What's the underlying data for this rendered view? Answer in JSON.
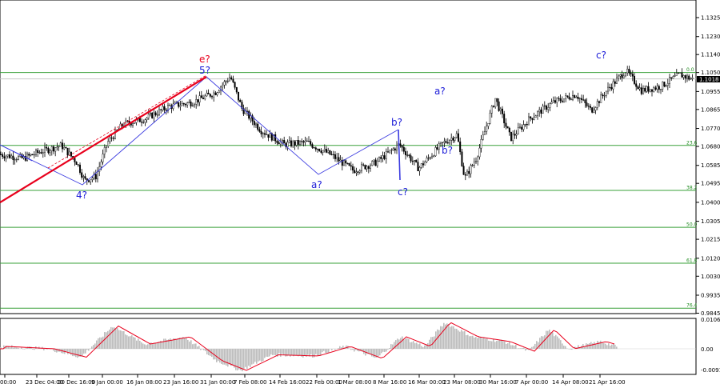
{
  "chart_data": [
    {
      "type": "candlestick",
      "instrument_price_label": "1.1018",
      "y_ticks": [
        "1.1325",
        "1.1230",
        "1.1140",
        "1.1050",
        "1.0955",
        "1.0865",
        "1.0770",
        "1.0680",
        "1.0585",
        "1.0495",
        "1.0400",
        "1.0305",
        "1.0215",
        "1.0120",
        "1.0030",
        "0.9935",
        "0.9845"
      ],
      "y_tick_values": [
        1.1325,
        1.123,
        1.114,
        1.105,
        1.0955,
        1.0865,
        1.077,
        1.068,
        1.0585,
        1.0495,
        1.04,
        1.0305,
        1.0215,
        1.012,
        1.003,
        0.9935,
        0.9845
      ],
      "ylim": [
        0.984,
        1.145
      ],
      "x_ticks": [
        "00:00",
        "23 Dec 04:00",
        "30 Dec 16:00",
        "9 Jan 00:00",
        "16 Jan 08:00",
        "23 Jan 16:00",
        "31 Jan 00:00",
        "7 Feb 08:00",
        "14 Feb 16:00",
        "22 Feb 00:00",
        "1 Mar 08:00",
        "8 Mar 16:00",
        "16 Mar 00:00",
        "23 Mar 08:00",
        "30 Mar 16:00",
        "7 Apr 00:00",
        "14 Apr 08:00",
        "21 Apr 16:00"
      ],
      "fib_levels": [
        {
          "label": "0.0",
          "price": 1.105
        },
        {
          "label": "23.6",
          "price": 1.0685
        },
        {
          "label": "38.2",
          "price": 1.046
        },
        {
          "label": "50.0",
          "price": 1.0275
        },
        {
          "label": "61.8",
          "price": 1.0095
        },
        {
          "label": "76.4",
          "price": 0.987
        }
      ],
      "wave_labels": [
        {
          "text": "e?",
          "color": "#e8001c"
        },
        {
          "text": "5?",
          "color": "#1c1cd8"
        },
        {
          "text": "4?",
          "color": "#1c1cd8"
        },
        {
          "text": "a?",
          "color": "#1c1cd8"
        },
        {
          "text": "b?",
          "color": "#1c1cd8"
        },
        {
          "text": "c?",
          "color": "#1c1cd8"
        },
        {
          "text": "a?",
          "color": "#1c1cd8"
        },
        {
          "text": "b?",
          "color": "#1c1cd8"
        },
        {
          "text": "c?",
          "color": "#1c1cd8"
        }
      ],
      "price_path": [
        [
          "0",
          1.064
        ],
        [
          "0.03",
          1.062
        ],
        [
          "0.05",
          1.065
        ],
        [
          "0.08",
          1.0685
        ],
        [
          "0.1",
          1.06
        ],
        [
          "0.11",
          1.051
        ],
        [
          "0.125",
          1.053
        ],
        [
          "0.14",
          1.07
        ],
        [
          "0.16",
          1.079
        ],
        [
          "0.19",
          1.082
        ],
        [
          "0.22",
          1.088
        ],
        [
          "0.25",
          1.09
        ],
        [
          "0.28",
          1.095
        ],
        [
          "0.30",
          1.103
        ],
        [
          "0.315",
          1.087
        ],
        [
          "0.34",
          1.076
        ],
        [
          "0.37",
          1.069
        ],
        [
          "0.40",
          1.07
        ],
        [
          "0.43",
          1.064
        ],
        [
          "0.46",
          1.056
        ],
        [
          "0.49",
          1.06
        ],
        [
          "0.52",
          1.069
        ],
        [
          "0.545",
          1.057
        ],
        [
          "0.575",
          1.069
        ],
        [
          "0.595",
          1.074
        ],
        [
          "0.605",
          1.052
        ],
        [
          "0.62",
          1.062
        ],
        [
          "0.645",
          1.092
        ],
        [
          "0.665",
          1.072
        ],
        [
          "0.69",
          1.082
        ],
        [
          "0.72",
          1.09
        ],
        [
          "0.75",
          1.094
        ],
        [
          "0.77",
          1.086
        ],
        [
          "0.79",
          1.096
        ],
        [
          "0.815",
          1.106
        ],
        [
          "0.835",
          1.096
        ],
        [
          "0.86",
          1.098
        ],
        [
          "0.885",
          1.104
        ],
        [
          "0.9",
          1.1018
        ]
      ],
      "ylabel": "",
      "xlabel": "",
      "grid": false
    },
    {
      "type": "area",
      "panel": "oscillator",
      "y_ticks": [
        "0.01065",
        "0.00",
        "-0.00913"
      ],
      "ylim": [
        -0.00913,
        0.01065
      ],
      "signal_color": "#e8001c",
      "histogram_color": "#bdbdbd"
    }
  ]
}
